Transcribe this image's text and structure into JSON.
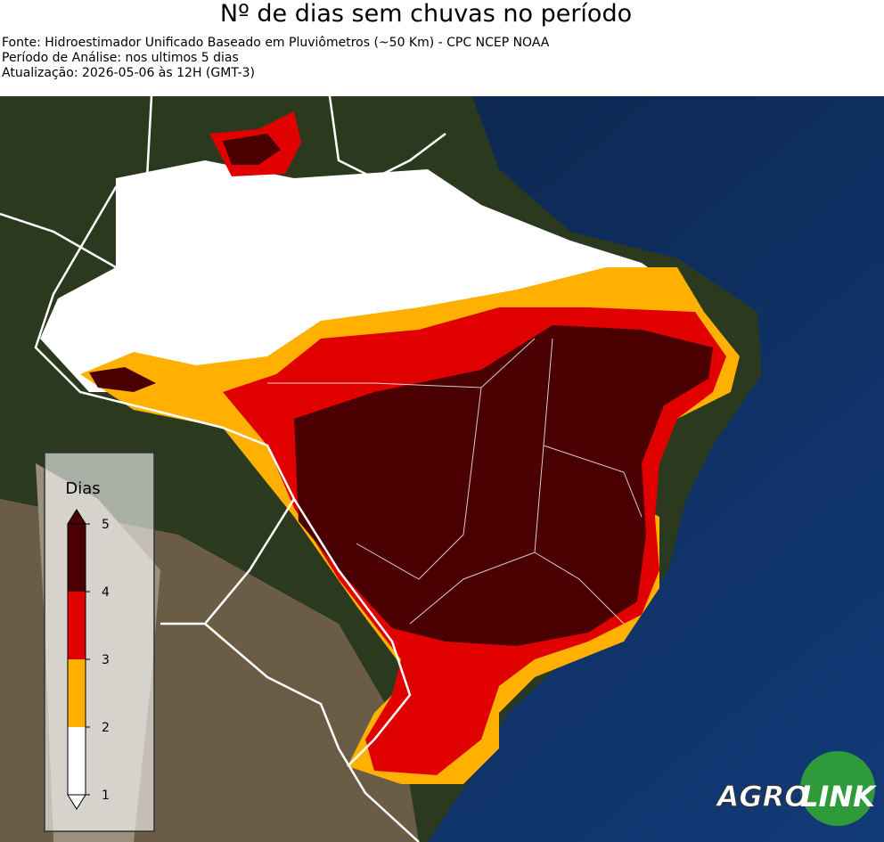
{
  "header": {
    "title": "Nº de dias sem chuvas no período",
    "lines": [
      "Fonte: Hidroestimador Unificado Baseado em Pluviômetros (~50 Km) - CPC NCEP NOAA",
      "Período de Análise: nos ultimos 5 dias",
      "Atualização: 2026-05-06 às 12H (GMT-3)"
    ]
  },
  "legend": {
    "title": "Dias",
    "ticks": [
      1,
      2,
      3,
      4,
      5
    ],
    "colors": [
      "#ffffff",
      "#ffb000",
      "#e00000",
      "#4a0000"
    ]
  },
  "logo": {
    "left": "AGRO",
    "right": "LINK"
  }
}
